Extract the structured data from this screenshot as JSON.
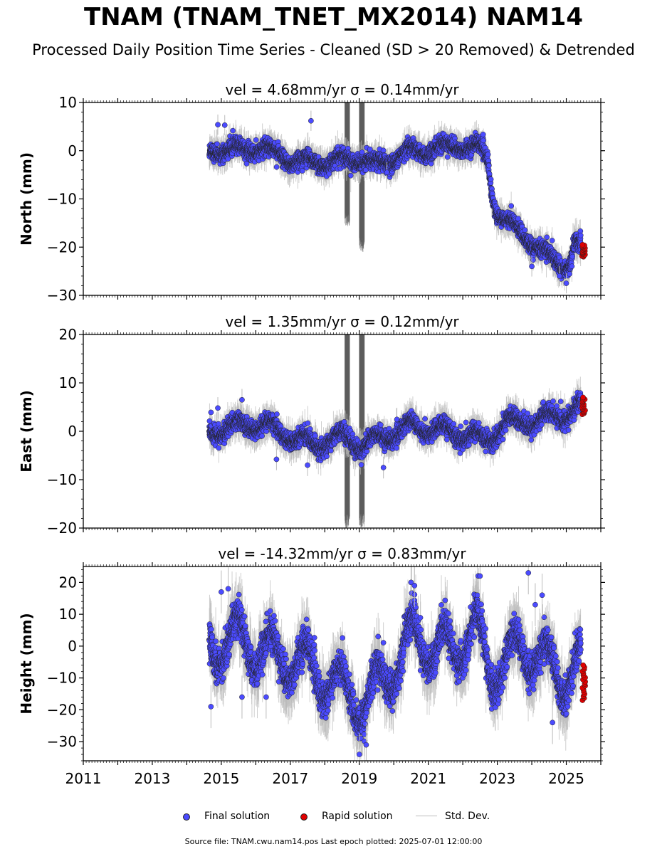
{
  "title": "TNAM (TNAM_TNET_MX2014) NAM14",
  "subtitle": "Processed Daily Position Time Series - Cleaned (SD > 20 Removed) & Detrended",
  "legend": {
    "final_label": "Final solution",
    "rapid_label": "Rapid solution",
    "std_label": "Std. Dev."
  },
  "footer": "Source file: TNAM.cwu.nam14.pos  Last epoch plotted: 2025-07-01 12:00:00",
  "colors": {
    "final": "#4b4bff",
    "rapid": "#e00000",
    "std": "#bbbbbb",
    "outline": "#222222"
  },
  "chart_data": [
    {
      "type": "scatter",
      "title": "vel = 4.68mm/yr   σ = 0.14mm/yr",
      "ylabel": "North (mm)",
      "xlim": [
        2011,
        2026
      ],
      "ylim": [
        -30,
        10
      ],
      "yticks": [
        -30,
        -20,
        -10,
        0,
        10
      ],
      "ytick_labels": [
        "−30",
        "−20",
        "−10",
        "0",
        "10"
      ],
      "xticks": [
        2011,
        2013,
        2015,
        2017,
        2019,
        2021,
        2023,
        2025
      ],
      "xtick_labels": [],
      "grid": false,
      "series": [
        {
          "name": "Final solution",
          "x_range": [
            2014.65,
            2025.42
          ],
          "trend": [
            [
              2014.65,
              0
            ],
            [
              2016.3,
              0.5
            ],
            [
              2017.0,
              -2
            ],
            [
              2018.1,
              -2.5
            ],
            [
              2018.9,
              -1.5
            ],
            [
              2019.5,
              -3
            ],
            [
              2020.4,
              -0.5
            ],
            [
              2021.8,
              1
            ],
            [
              2022.5,
              0.5
            ],
            [
              2022.73,
              -2
            ],
            [
              2022.85,
              -9
            ],
            [
              2023.0,
              -13
            ],
            [
              2023.5,
              -16
            ],
            [
              2024.0,
              -19
            ],
            [
              2024.5,
              -22
            ],
            [
              2024.9,
              -24
            ],
            [
              2025.1,
              -23
            ],
            [
              2025.25,
              -19
            ],
            [
              2025.42,
              -20
            ]
          ],
          "spread": 1.4,
          "seasonal_amp": 1.0,
          "outliers": [
            [
              2014.9,
              5.4
            ],
            [
              2015.1,
              5.3
            ],
            [
              2017.6,
              6.2
            ],
            [
              2024.0,
              -24
            ],
            [
              2024.8,
              -26
            ],
            [
              2025.0,
              -27.5
            ],
            [
              2019.8,
              -4.5
            ]
          ]
        },
        {
          "name": "Rapid solution",
          "x_range": [
            2025.45,
            2025.55
          ],
          "values_range": [
            -22,
            -19.5
          ]
        }
      ],
      "std_dev_gaps": [
        [
          2018.58,
          2018.72,
          -16,
          10
        ],
        [
          2019.0,
          2019.15,
          -21,
          10
        ]
      ]
    },
    {
      "type": "scatter",
      "title": "vel = 1.35mm/yr   σ = 0.12mm/yr",
      "ylabel": "East (mm)",
      "xlim": [
        2011,
        2026
      ],
      "ylim": [
        -20,
        20
      ],
      "yticks": [
        -20,
        -10,
        0,
        10,
        20
      ],
      "ytick_labels": [
        "−20",
        "−10",
        "0",
        "10",
        "20"
      ],
      "xticks": [
        2011,
        2013,
        2015,
        2017,
        2019,
        2021,
        2023,
        2025
      ],
      "xtick_labels": [],
      "grid": false,
      "series": [
        {
          "name": "Final solution",
          "x_range": [
            2014.65,
            2025.42
          ],
          "trend": [
            [
              2014.65,
              0
            ],
            [
              2015.5,
              1
            ],
            [
              2016.2,
              1.5
            ],
            [
              2017.0,
              -1
            ],
            [
              2017.8,
              -3
            ],
            [
              2018.5,
              -1
            ],
            [
              2019.1,
              -3
            ],
            [
              2019.8,
              -1
            ],
            [
              2020.5,
              1
            ],
            [
              2021.5,
              0
            ],
            [
              2022.3,
              -1
            ],
            [
              2022.7,
              -2
            ],
            [
              2023.3,
              2
            ],
            [
              2024.0,
              2
            ],
            [
              2024.6,
              3
            ],
            [
              2025.0,
              3.5
            ],
            [
              2025.42,
              5
            ]
          ],
          "spread": 1.5,
          "seasonal_amp": 1.3,
          "outliers": [
            [
              2015.6,
              6.5
            ],
            [
              2014.9,
              4.8
            ],
            [
              2016.6,
              -5.8
            ],
            [
              2017.5,
              -7
            ],
            [
              2019.7,
              -7.5
            ]
          ]
        },
        {
          "name": "Rapid solution",
          "x_range": [
            2025.45,
            2025.55
          ],
          "values_range": [
            3.5,
            7
          ]
        }
      ],
      "std_dev_gaps": [
        [
          2018.58,
          2018.72,
          -20,
          20
        ],
        [
          2019.0,
          2019.15,
          -20,
          20
        ]
      ]
    },
    {
      "type": "scatter",
      "title": "vel = -14.32mm/yr   σ = 0.83mm/yr",
      "ylabel": "Height (mm)",
      "xlim": [
        2011,
        2026
      ],
      "ylim": [
        -36,
        25
      ],
      "yticks": [
        -30,
        -20,
        -10,
        0,
        10,
        20
      ],
      "ytick_labels": [
        "−30",
        "−20",
        "−10",
        "0",
        "10",
        "20"
      ],
      "xticks": [
        2011,
        2013,
        2015,
        2017,
        2019,
        2021,
        2023,
        2025
      ],
      "xtick_labels": [
        "2011",
        "2013",
        "2015",
        "2017",
        "2019",
        "2021",
        "2023",
        "2025"
      ],
      "grid": false,
      "series": [
        {
          "name": "Final solution",
          "x_range": [
            2014.65,
            2025.42
          ],
          "trend": [
            [
              2014.65,
              0
            ],
            [
              2015.5,
              2
            ],
            [
              2016.5,
              -3
            ],
            [
              2017.5,
              -6
            ],
            [
              2018.2,
              -12
            ],
            [
              2018.8,
              -15
            ],
            [
              2019.2,
              -20
            ],
            [
              2019.6,
              -10
            ],
            [
              2020.2,
              -5
            ],
            [
              2020.6,
              5
            ],
            [
              2021.2,
              -2
            ],
            [
              2021.8,
              0
            ],
            [
              2022.4,
              5
            ],
            [
              2022.8,
              -8
            ],
            [
              2023.3,
              -5
            ],
            [
              2023.8,
              0
            ],
            [
              2024.4,
              -5
            ],
            [
              2024.8,
              -10
            ],
            [
              2025.42,
              -5
            ]
          ],
          "spread": 4.5,
          "seasonal_amp": 7.0,
          "outliers": [
            [
              2014.7,
              -19
            ],
            [
              2015.2,
              18
            ],
            [
              2015.0,
              17
            ],
            [
              2020.5,
              20
            ],
            [
              2020.6,
              19
            ],
            [
              2022.5,
              22
            ],
            [
              2023.9,
              23
            ],
            [
              2024.3,
              16
            ],
            [
              2024.1,
              13
            ],
            [
              2024.6,
              -24
            ],
            [
              2019.0,
              -34
            ],
            [
              2019.2,
              -31
            ],
            [
              2015.6,
              -16
            ],
            [
              2016.3,
              -16
            ]
          ]
        },
        {
          "name": "Rapid solution",
          "x_range": [
            2025.45,
            2025.55
          ],
          "values_range": [
            -17,
            -6
          ]
        }
      ],
      "std_dev_gaps": []
    }
  ]
}
